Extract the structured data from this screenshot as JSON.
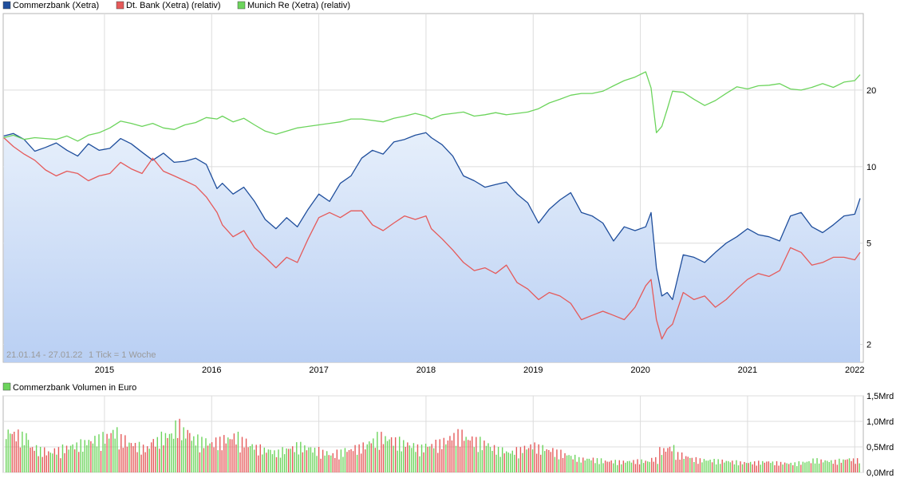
{
  "chart_data": [
    {
      "type": "line",
      "yscale": "log",
      "legend": "top-left",
      "grid": true,
      "info_range": "21.01.14 - 27.01.22",
      "info_tick": "1 Tick = 1 Woche",
      "x_tick_labels": [
        "2015",
        "2016",
        "2017",
        "2018",
        "2019",
        "2020",
        "2021",
        "2022"
      ],
      "y_tick_labels": [
        "20",
        "10",
        "5",
        "2"
      ],
      "y_tick_values": [
        20,
        10,
        5,
        2
      ],
      "ylim": [
        1.7,
        40
      ],
      "xlim": [
        2014.055,
        2022.08
      ],
      "series": [
        {
          "name": "Commerzbank (Xetra)",
          "color": "#1f4e9c",
          "fill": true,
          "x": [
            2014.06,
            2014.15,
            2014.25,
            2014.35,
            2014.45,
            2014.55,
            2014.65,
            2014.75,
            2014.85,
            2014.95,
            2015.05,
            2015.15,
            2015.25,
            2015.35,
            2015.45,
            2015.55,
            2015.65,
            2015.75,
            2015.85,
            2015.95,
            2016.05,
            2016.1,
            2016.2,
            2016.3,
            2016.4,
            2016.5,
            2016.6,
            2016.7,
            2016.8,
            2016.9,
            2017.0,
            2017.1,
            2017.2,
            2017.3,
            2017.4,
            2017.5,
            2017.6,
            2017.7,
            2017.8,
            2017.9,
            2018.0,
            2018.05,
            2018.15,
            2018.25,
            2018.35,
            2018.45,
            2018.55,
            2018.65,
            2018.75,
            2018.85,
            2018.95,
            2019.05,
            2019.15,
            2019.25,
            2019.35,
            2019.45,
            2019.55,
            2019.65,
            2019.75,
            2019.85,
            2019.95,
            2020.05,
            2020.1,
            2020.15,
            2020.2,
            2020.25,
            2020.3,
            2020.4,
            2020.5,
            2020.6,
            2020.7,
            2020.8,
            2020.9,
            2021.0,
            2021.1,
            2021.2,
            2021.3,
            2021.4,
            2021.5,
            2021.6,
            2021.7,
            2021.8,
            2021.9,
            2022.0,
            2022.05
          ],
          "y": [
            13.2,
            13.5,
            12.8,
            11.5,
            11.9,
            12.4,
            11.6,
            11.0,
            12.3,
            11.6,
            11.8,
            12.9,
            12.3,
            11.4,
            10.6,
            11.3,
            10.4,
            10.5,
            10.8,
            10.2,
            8.2,
            8.6,
            7.8,
            8.3,
            7.3,
            6.2,
            5.7,
            6.3,
            5.8,
            6.8,
            7.8,
            7.3,
            8.6,
            9.2,
            10.8,
            11.6,
            11.2,
            12.5,
            12.8,
            13.3,
            13.6,
            13.0,
            12.2,
            11.0,
            9.2,
            8.8,
            8.3,
            8.5,
            8.7,
            7.8,
            7.2,
            6.0,
            6.8,
            7.4,
            7.9,
            6.6,
            6.4,
            6.0,
            5.1,
            5.8,
            5.6,
            5.8,
            6.6,
            4.0,
            3.1,
            3.2,
            3.0,
            4.5,
            4.4,
            4.2,
            4.6,
            5.0,
            5.3,
            5.7,
            5.4,
            5.3,
            5.1,
            6.4,
            6.6,
            5.8,
            5.5,
            5.9,
            6.4,
            6.5,
            7.5
          ]
        },
        {
          "name": "Dt. Bank (Xetra) (relativ)",
          "color": "#e55a5a",
          "fill": false,
          "x": [
            2014.06,
            2014.15,
            2014.25,
            2014.35,
            2014.45,
            2014.55,
            2014.65,
            2014.75,
            2014.85,
            2014.95,
            2015.05,
            2015.15,
            2015.25,
            2015.35,
            2015.45,
            2015.55,
            2015.65,
            2015.75,
            2015.85,
            2015.95,
            2016.05,
            2016.1,
            2016.2,
            2016.3,
            2016.4,
            2016.5,
            2016.6,
            2016.7,
            2016.8,
            2016.9,
            2017.0,
            2017.1,
            2017.2,
            2017.3,
            2017.4,
            2017.5,
            2017.6,
            2017.7,
            2017.8,
            2017.9,
            2018.0,
            2018.05,
            2018.15,
            2018.25,
            2018.35,
            2018.45,
            2018.55,
            2018.65,
            2018.75,
            2018.85,
            2018.95,
            2019.05,
            2019.15,
            2019.25,
            2019.35,
            2019.45,
            2019.55,
            2019.65,
            2019.75,
            2019.85,
            2019.95,
            2020.05,
            2020.1,
            2020.15,
            2020.2,
            2020.25,
            2020.3,
            2020.4,
            2020.5,
            2020.6,
            2020.7,
            2020.8,
            2020.9,
            2021.0,
            2021.1,
            2021.2,
            2021.3,
            2021.4,
            2021.5,
            2021.6,
            2021.7,
            2021.8,
            2021.9,
            2022.0,
            2022.05
          ],
          "y": [
            13.0,
            12.0,
            11.2,
            10.6,
            9.7,
            9.2,
            9.6,
            9.4,
            8.8,
            9.2,
            9.4,
            10.4,
            9.8,
            9.4,
            10.8,
            9.6,
            9.2,
            8.8,
            8.4,
            7.6,
            6.6,
            5.9,
            5.3,
            5.6,
            4.8,
            4.4,
            4.0,
            4.4,
            4.2,
            5.2,
            6.3,
            6.6,
            6.3,
            6.7,
            6.7,
            5.9,
            5.6,
            6.0,
            6.4,
            6.2,
            6.4,
            5.7,
            5.2,
            4.7,
            4.2,
            3.9,
            4.0,
            3.8,
            4.1,
            3.5,
            3.3,
            3.0,
            3.2,
            3.1,
            2.9,
            2.5,
            2.6,
            2.7,
            2.6,
            2.5,
            2.8,
            3.4,
            3.6,
            2.5,
            2.1,
            2.3,
            2.4,
            3.2,
            3.0,
            3.1,
            2.8,
            3.0,
            3.3,
            3.6,
            3.8,
            3.7,
            3.9,
            4.8,
            4.6,
            4.1,
            4.2,
            4.4,
            4.4,
            4.3,
            4.6
          ]
        },
        {
          "name": "Munich Re (Xetra) (relativ)",
          "color": "#6cd45c",
          "fill": false,
          "x": [
            2014.06,
            2014.15,
            2014.25,
            2014.35,
            2014.45,
            2014.55,
            2014.65,
            2014.75,
            2014.85,
            2014.95,
            2015.05,
            2015.15,
            2015.25,
            2015.35,
            2015.45,
            2015.55,
            2015.65,
            2015.75,
            2015.85,
            2015.95,
            2016.05,
            2016.1,
            2016.2,
            2016.3,
            2016.4,
            2016.5,
            2016.6,
            2016.7,
            2016.8,
            2016.9,
            2017.0,
            2017.1,
            2017.2,
            2017.3,
            2017.4,
            2017.5,
            2017.6,
            2017.7,
            2017.8,
            2017.9,
            2018.0,
            2018.05,
            2018.15,
            2018.25,
            2018.35,
            2018.45,
            2018.55,
            2018.65,
            2018.75,
            2018.85,
            2018.95,
            2019.05,
            2019.15,
            2019.25,
            2019.35,
            2019.45,
            2019.55,
            2019.65,
            2019.75,
            2019.85,
            2019.95,
            2020.05,
            2020.1,
            2020.15,
            2020.2,
            2020.25,
            2020.3,
            2020.4,
            2020.5,
            2020.6,
            2020.7,
            2020.8,
            2020.9,
            2021.0,
            2021.1,
            2021.2,
            2021.3,
            2021.4,
            2021.5,
            2021.6,
            2021.7,
            2021.8,
            2021.9,
            2022.0,
            2022.05
          ],
          "y": [
            13.0,
            13.3,
            12.8,
            13.0,
            12.9,
            12.8,
            13.2,
            12.6,
            13.3,
            13.6,
            14.2,
            15.1,
            14.8,
            14.4,
            14.8,
            14.2,
            14.0,
            14.6,
            14.9,
            15.6,
            15.4,
            15.8,
            15.0,
            15.5,
            14.6,
            13.8,
            13.4,
            13.8,
            14.2,
            14.4,
            14.6,
            14.8,
            15.0,
            15.4,
            15.4,
            15.2,
            15.0,
            15.5,
            15.8,
            16.2,
            15.8,
            15.4,
            16.0,
            16.2,
            16.4,
            15.8,
            16.0,
            16.3,
            16.0,
            16.2,
            16.4,
            16.9,
            17.8,
            18.4,
            19.1,
            19.4,
            19.4,
            19.8,
            20.8,
            21.8,
            22.5,
            23.6,
            20.4,
            13.6,
            14.4,
            16.8,
            19.8,
            19.6,
            18.4,
            17.4,
            18.2,
            19.4,
            20.6,
            20.2,
            20.8,
            20.9,
            21.2,
            20.2,
            20.0,
            20.5,
            21.2,
            20.5,
            21.5,
            21.8,
            23.0
          ]
        }
      ]
    },
    {
      "type": "bar",
      "legend": "top-left",
      "grid": true,
      "title": "Commerzbank Volumen in Euro",
      "color": "#6cd45c",
      "y_tick_labels": [
        "1,5Mrd",
        "1,0Mrd",
        "0,5Mrd",
        "0,0Mrd"
      ],
      "y_tick_values": [
        1.5,
        1.0,
        0.5,
        0.0
      ],
      "ylim": [
        0,
        1.5
      ],
      "bar_colors": [
        "#6cd45c",
        "#e55a5a"
      ],
      "values": [
        0.9,
        0.85,
        0.8,
        0.55,
        0.5,
        0.45,
        0.5,
        0.55,
        0.6,
        0.65,
        0.7,
        0.75,
        0.8,
        0.9,
        0.75,
        0.65,
        0.6,
        0.55,
        0.7,
        0.8,
        0.85,
        1.05,
        0.9,
        0.75,
        0.7,
        0.65,
        0.7,
        0.75,
        0.8,
        0.7,
        0.6,
        0.55,
        0.5,
        0.45,
        0.5,
        0.55,
        0.6,
        0.55,
        0.5,
        0.45,
        0.4,
        0.45,
        0.5,
        0.55,
        0.6,
        0.7,
        0.8,
        0.75,
        0.7,
        0.65,
        0.6,
        0.55,
        0.6,
        0.65,
        0.7,
        0.8,
        0.85,
        0.75,
        0.7,
        0.65,
        0.55,
        0.5,
        0.45,
        0.5,
        0.55,
        0.6,
        0.55,
        0.5,
        0.45,
        0.4,
        0.35,
        0.3,
        0.3,
        0.28,
        0.25,
        0.25,
        0.24,
        0.25,
        0.26,
        0.25,
        0.3,
        0.5,
        0.55,
        0.4,
        0.35,
        0.3,
        0.28,
        0.27,
        0.26,
        0.25,
        0.24,
        0.22,
        0.22,
        0.23,
        0.24,
        0.22,
        0.21,
        0.2,
        0.22,
        0.24,
        0.28,
        0.26,
        0.25,
        0.27,
        0.3,
        0.28
      ]
    }
  ]
}
